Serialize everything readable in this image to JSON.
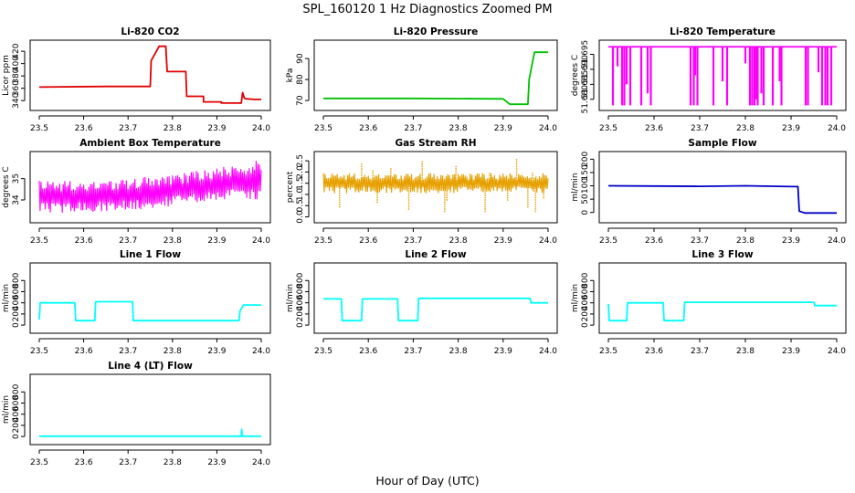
{
  "figure": {
    "title": "SPL_160120  1 Hz Diagnostics Zoomed PM",
    "xlabel": "Hour of Day (UTC)"
  },
  "chart_data": [
    {
      "id": "co2",
      "type": "line",
      "title": "Li-820 CO2",
      "ylabel": "Licor ppm",
      "color": "#e00000",
      "xlim": [
        23.5,
        24.0
      ],
      "ylim": [
        330,
        432
      ],
      "yticks": [
        340,
        360,
        380,
        400,
        420
      ],
      "xticks": [
        23.5,
        23.6,
        23.7,
        23.8,
        23.9,
        24.0
      ],
      "x": [
        23.5,
        23.65,
        23.75,
        23.752,
        23.77,
        23.785,
        23.788,
        23.82,
        23.83,
        23.832,
        23.87,
        23.87,
        23.91,
        23.91,
        23.955,
        23.958,
        23.962,
        23.965,
        23.985,
        24.0
      ],
      "y": [
        362,
        363,
        363,
        405,
        428,
        428,
        387,
        387,
        387,
        347,
        347,
        338,
        338,
        336,
        336,
        353,
        344,
        343,
        342,
        342
      ]
    },
    {
      "id": "pressure",
      "type": "line",
      "title": "Li-820 Pressure",
      "ylabel": "kPa",
      "color": "#00c000",
      "xlim": [
        23.5,
        24.0
      ],
      "ylim": [
        67,
        97
      ],
      "yticks": [
        70,
        80,
        90
      ],
      "xticks": [
        23.5,
        23.6,
        23.7,
        23.8,
        23.9,
        24.0
      ],
      "x": [
        23.5,
        23.7,
        23.9,
        23.915,
        23.955,
        23.958,
        23.965,
        23.97,
        24.0
      ],
      "y": [
        71,
        71,
        70.8,
        68.2,
        68.2,
        80,
        88,
        93,
        93
      ]
    },
    {
      "id": "licor_temp",
      "type": "line",
      "title": "Li-820 Temperature",
      "ylabel": "degrees C",
      "color": "#ff00ff",
      "xlim": [
        23.5,
        24.0
      ],
      "ylim": [
        51.6775,
        51.6985
      ],
      "yticks": [
        51.68,
        51.685,
        51.69,
        51.695
      ],
      "xticks": [
        23.5,
        23.6,
        23.7,
        23.8,
        23.9,
        24.0
      ],
      "baseline": 51.6975,
      "dips": [
        [
          23.51,
          51.678
        ],
        [
          23.52,
          51.691
        ],
        [
          23.53,
          51.678
        ],
        [
          23.535,
          51.678
        ],
        [
          23.54,
          51.685
        ],
        [
          23.548,
          51.678
        ],
        [
          23.572,
          51.678
        ],
        [
          23.586,
          51.682
        ],
        [
          23.593,
          51.678
        ],
        [
          23.68,
          51.678
        ],
        [
          23.687,
          51.678
        ],
        [
          23.69,
          51.688
        ],
        [
          23.695,
          51.678
        ],
        [
          23.73,
          51.678
        ],
        [
          23.75,
          51.686
        ],
        [
          23.76,
          51.678
        ],
        [
          23.8,
          51.692
        ],
        [
          23.81,
          51.678
        ],
        [
          23.815,
          51.678
        ],
        [
          23.82,
          51.678
        ],
        [
          23.823,
          51.68
        ],
        [
          23.827,
          51.678
        ],
        [
          23.835,
          51.682
        ],
        [
          23.84,
          51.678
        ],
        [
          23.86,
          51.678
        ],
        [
          23.875,
          51.686
        ],
        [
          23.879,
          51.678
        ],
        [
          23.932,
          51.678
        ],
        [
          23.937,
          51.678
        ],
        [
          23.96,
          51.689
        ],
        [
          23.968,
          51.678
        ],
        [
          23.975,
          51.678
        ],
        [
          23.98,
          51.678
        ],
        [
          23.988,
          51.678
        ]
      ]
    },
    {
      "id": "ambient_box",
      "type": "line",
      "title": "Ambient Box Temperature",
      "ylabel": "degrees C",
      "color": "#ff00ff",
      "xlim": [
        23.5,
        24.0
      ],
      "ylim": [
        33.1,
        36.1
      ],
      "yticks": [
        34.0,
        35.0
      ],
      "xticks": [
        23.5,
        23.6,
        23.7,
        23.8,
        23.9,
        24.0
      ],
      "band": {
        "x": [
          23.5,
          23.6,
          23.7,
          23.8,
          23.9,
          24.0
        ],
        "low": [
          33.4,
          33.4,
          33.5,
          33.7,
          33.9,
          34.0
        ],
        "high": [
          34.9,
          34.9,
          35.0,
          35.2,
          35.5,
          35.9
        ]
      }
    },
    {
      "id": "gas_rh",
      "type": "line",
      "title": "Gas Stream RH",
      "ylabel": "percent",
      "color": "#e6a000",
      "xlim": [
        23.5,
        24.0
      ],
      "ylim": [
        -0.1,
        2.75
      ],
      "yticks": [
        0.0,
        0.5,
        1.0,
        1.5,
        2.0,
        2.5
      ],
      "xticks": [
        23.5,
        23.6,
        23.7,
        23.8,
        23.9,
        24.0
      ],
      "band": {
        "x": [
          23.5,
          24.0
        ],
        "low": [
          1.05,
          1.05
        ],
        "high": [
          1.95,
          1.95
        ]
      },
      "spikes": [
        [
          23.536,
          0.4
        ],
        [
          23.585,
          2.4
        ],
        [
          23.61,
          2.1
        ],
        [
          23.62,
          0.6
        ],
        [
          23.65,
          2.2
        ],
        [
          23.69,
          0.3
        ],
        [
          23.72,
          2.5
        ],
        [
          23.77,
          0.2
        ],
        [
          23.775,
          0.7
        ],
        [
          23.795,
          2.3
        ],
        [
          23.86,
          0.2
        ],
        [
          23.87,
          2.0
        ],
        [
          23.91,
          0.7
        ],
        [
          23.93,
          2.6
        ],
        [
          23.955,
          0.4
        ],
        [
          23.965,
          2.0
        ],
        [
          23.972,
          0.2
        ],
        [
          23.99,
          0.8
        ]
      ]
    },
    {
      "id": "sample_flow",
      "type": "line",
      "title": "Sample Flow",
      "ylabel": "ml/min",
      "color": "#0000c8",
      "xlim": [
        23.5,
        24.0
      ],
      "ylim": [
        -25,
        215
      ],
      "yticks": [
        0,
        50,
        100,
        150,
        200
      ],
      "xticks": [
        23.5,
        23.6,
        23.7,
        23.8,
        23.9,
        24.0
      ],
      "x": [
        23.5,
        23.6,
        23.7,
        23.8,
        23.9,
        23.915,
        23.918,
        23.93,
        24.0
      ],
      "y": [
        100,
        99,
        98,
        100,
        97,
        97,
        5,
        -2,
        -2
      ]
    },
    {
      "id": "line1",
      "type": "line",
      "title": "Line 1 Flow",
      "ylabel": "ml/min",
      "color": "#00ffff",
      "xlim": [
        23.5,
        24.0
      ],
      "ylim": [
        -80,
        1050
      ],
      "yticks": [
        0,
        200,
        400,
        600,
        800
      ],
      "xticks": [
        23.5,
        23.6,
        23.7,
        23.8,
        23.9,
        24.0
      ],
      "x": [
        23.5,
        23.502,
        23.58,
        23.582,
        23.625,
        23.627,
        23.71,
        23.712,
        23.95,
        23.952,
        23.96,
        23.962,
        24.0
      ],
      "y": [
        100,
        400,
        400,
        80,
        80,
        420,
        420,
        80,
        80,
        250,
        360,
        360,
        360
      ]
    },
    {
      "id": "line2",
      "type": "line",
      "title": "Line 2 Flow",
      "ylabel": "ml/min",
      "color": "#00ffff",
      "xlim": [
        23.5,
        24.0
      ],
      "ylim": [
        -80,
        1050
      ],
      "yticks": [
        0,
        200,
        400,
        600,
        800
      ],
      "xticks": [
        23.5,
        23.6,
        23.7,
        23.8,
        23.9,
        24.0
      ],
      "x": [
        23.5,
        23.54,
        23.542,
        23.585,
        23.587,
        23.665,
        23.667,
        23.71,
        23.712,
        23.96,
        23.962,
        24.0
      ],
      "y": [
        470,
        470,
        80,
        80,
        470,
        470,
        80,
        80,
        480,
        480,
        400,
        400
      ]
    },
    {
      "id": "line3",
      "type": "line",
      "title": "Line 3 Flow",
      "ylabel": "ml/min",
      "color": "#00ffff",
      "xlim": [
        23.5,
        24.0
      ],
      "ylim": [
        -80,
        1050
      ],
      "yticks": [
        0,
        200,
        400,
        600,
        800
      ],
      "xticks": [
        23.5,
        23.6,
        23.7,
        23.8,
        23.9,
        24.0
      ],
      "x": [
        23.5,
        23.502,
        23.54,
        23.542,
        23.62,
        23.622,
        23.665,
        23.667,
        23.95,
        23.952,
        24.0
      ],
      "y": [
        380,
        80,
        80,
        400,
        400,
        80,
        80,
        410,
        410,
        350,
        350
      ]
    },
    {
      "id": "line4",
      "type": "line",
      "title": "Line 4 (LT) Flow",
      "ylabel": "ml/min",
      "color": "#00ffff",
      "xlim": [
        23.5,
        24.0
      ],
      "ylim": [
        -80,
        1050
      ],
      "yticks": [
        0,
        200,
        400,
        600,
        800
      ],
      "xticks": [
        23.5,
        23.6,
        23.7,
        23.8,
        23.9,
        24.0
      ],
      "x": [
        23.5,
        23.955,
        23.956,
        23.957,
        23.958,
        24.0
      ],
      "y": [
        5,
        5,
        130,
        5,
        5,
        5
      ]
    }
  ]
}
